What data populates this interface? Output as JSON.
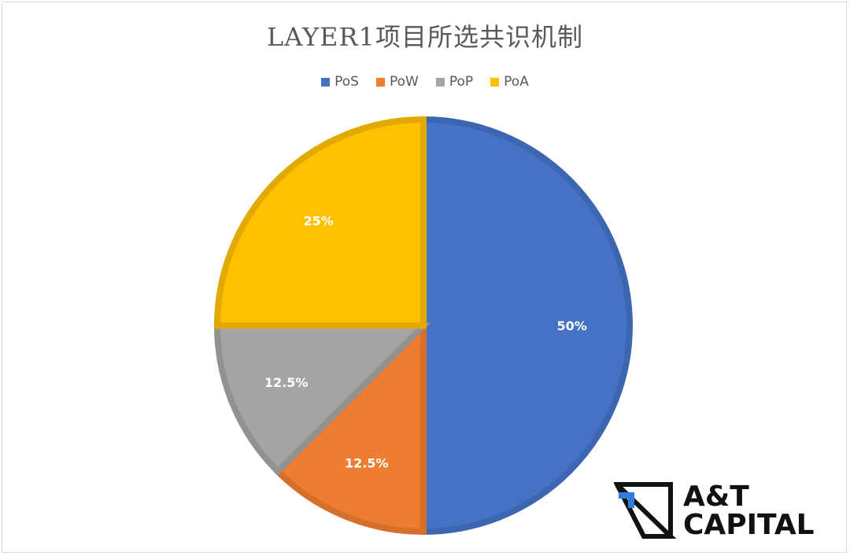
{
  "chart_data": {
    "type": "pie",
    "title": "LAYER1项目所选共识机制",
    "legend_position": "top",
    "slices": [
      {
        "label": "PoS",
        "value": 50,
        "display": "50%",
        "color": "#4472c4",
        "edge": "#3d66b0"
      },
      {
        "label": "PoW",
        "value": 12.5,
        "display": "12.5%",
        "color": "#ed7d31",
        "edge": "#d56f2b"
      },
      {
        "label": "PoP",
        "value": 12.5,
        "display": "12.5%",
        "color": "#a5a5a5",
        "edge": "#929292"
      },
      {
        "label": "PoA",
        "value": 25,
        "display": "25%",
        "color": "#ffc000",
        "edge": "#e2aa00"
      }
    ]
  },
  "watermark": {
    "line1": "A&T",
    "line2": "CAPITAL"
  }
}
